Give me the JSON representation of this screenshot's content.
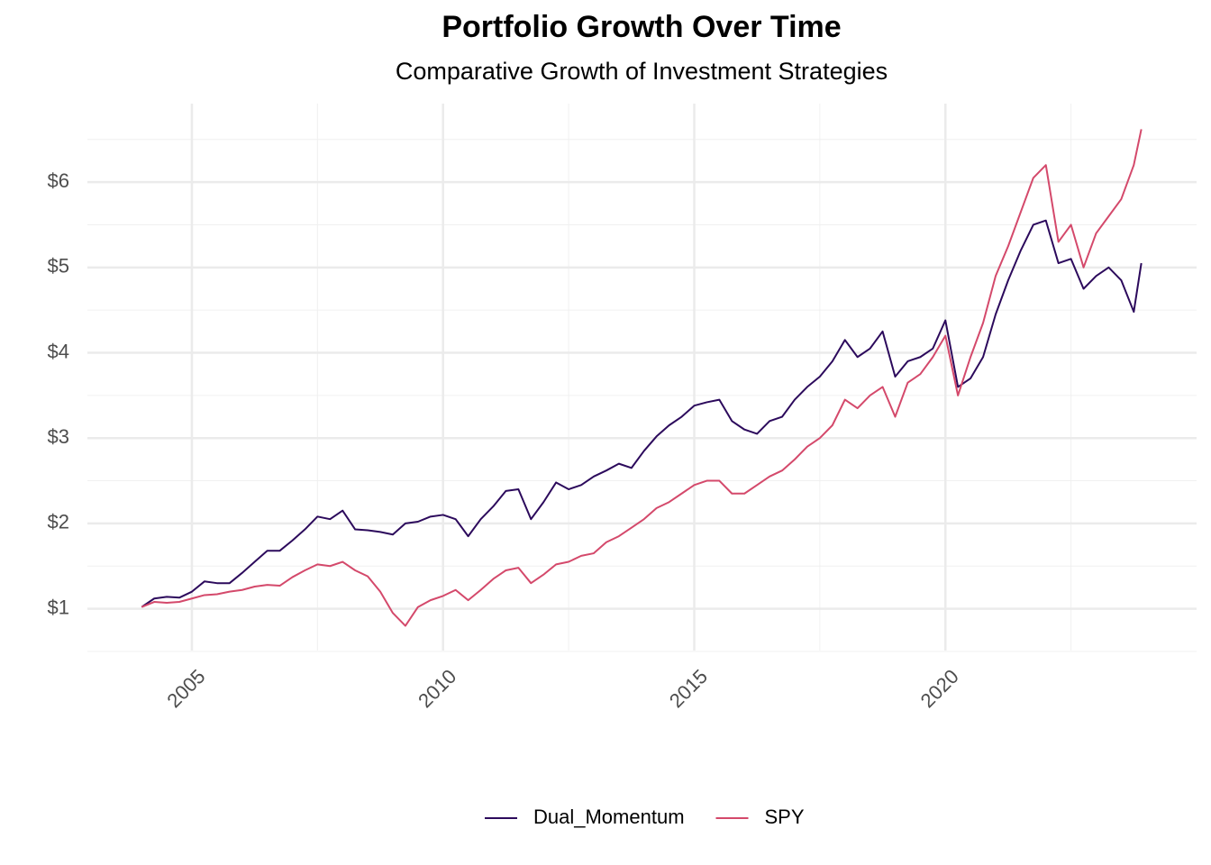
{
  "chart_data": {
    "type": "line",
    "title": "Portfolio Growth Over Time",
    "subtitle": "Comparative Growth of Investment Strategies",
    "x": [
      2004.0,
      2004.25,
      2004.5,
      2004.75,
      2005.0,
      2005.25,
      2005.5,
      2005.75,
      2006.0,
      2006.25,
      2006.5,
      2006.75,
      2007.0,
      2007.25,
      2007.5,
      2007.75,
      2008.0,
      2008.25,
      2008.5,
      2008.75,
      2009.0,
      2009.25,
      2009.5,
      2009.75,
      2010.0,
      2010.25,
      2010.5,
      2010.75,
      2011.0,
      2011.25,
      2011.5,
      2011.75,
      2012.0,
      2012.25,
      2012.5,
      2012.75,
      2013.0,
      2013.25,
      2013.5,
      2013.75,
      2014.0,
      2014.25,
      2014.5,
      2014.75,
      2015.0,
      2015.25,
      2015.5,
      2015.75,
      2016.0,
      2016.25,
      2016.5,
      2016.75,
      2017.0,
      2017.25,
      2017.5,
      2017.75,
      2018.0,
      2018.25,
      2018.5,
      2018.75,
      2019.0,
      2019.25,
      2019.5,
      2019.75,
      2020.0,
      2020.25,
      2020.5,
      2020.75,
      2021.0,
      2021.25,
      2021.5,
      2021.75,
      2022.0,
      2022.25,
      2022.5,
      2022.75,
      2023.0,
      2023.25,
      2023.5,
      2023.75,
      2023.9
    ],
    "series": [
      {
        "name": "Dual_Momentum",
        "color": "#2c0a5c",
        "values": [
          1.02,
          1.12,
          1.14,
          1.13,
          1.2,
          1.32,
          1.3,
          1.3,
          1.42,
          1.55,
          1.68,
          1.68,
          1.8,
          1.93,
          2.08,
          2.05,
          2.15,
          1.93,
          1.92,
          1.9,
          1.87,
          2.0,
          2.02,
          2.08,
          2.1,
          2.05,
          1.85,
          2.05,
          2.2,
          2.38,
          2.4,
          2.05,
          2.25,
          2.48,
          2.4,
          2.45,
          2.55,
          2.62,
          2.7,
          2.65,
          2.85,
          3.02,
          3.15,
          3.25,
          3.38,
          3.42,
          3.45,
          3.2,
          3.1,
          3.05,
          3.2,
          3.25,
          3.45,
          3.6,
          3.72,
          3.9,
          4.15,
          3.95,
          4.05,
          4.25,
          3.72,
          3.9,
          3.95,
          4.05,
          4.38,
          3.6,
          3.7,
          3.95,
          4.45,
          4.85,
          5.2,
          5.5,
          5.55,
          5.05,
          5.1,
          4.75,
          4.9,
          5.0,
          4.85,
          4.48,
          5.05
        ]
      },
      {
        "name": "SPY",
        "color": "#d4496b",
        "values": [
          1.02,
          1.08,
          1.07,
          1.08,
          1.12,
          1.16,
          1.17,
          1.2,
          1.22,
          1.26,
          1.28,
          1.27,
          1.37,
          1.45,
          1.52,
          1.5,
          1.55,
          1.45,
          1.38,
          1.2,
          0.95,
          0.8,
          1.02,
          1.1,
          1.15,
          1.22,
          1.1,
          1.22,
          1.35,
          1.45,
          1.48,
          1.3,
          1.4,
          1.52,
          1.55,
          1.62,
          1.65,
          1.78,
          1.85,
          1.95,
          2.05,
          2.18,
          2.25,
          2.35,
          2.45,
          2.5,
          2.5,
          2.35,
          2.35,
          2.45,
          2.55,
          2.62,
          2.75,
          2.9,
          3.0,
          3.15,
          3.45,
          3.35,
          3.5,
          3.6,
          3.25,
          3.65,
          3.75,
          3.95,
          4.2,
          3.5,
          3.95,
          4.35,
          4.9,
          5.25,
          5.65,
          6.05,
          6.2,
          5.3,
          5.5,
          5.0,
          5.4,
          5.6,
          5.8,
          6.2,
          6.62
        ]
      }
    ],
    "xlim": [
      2002.92,
      2025.0
    ],
    "xticks": [
      2005,
      2010,
      2015,
      2020
    ],
    "xminor": [
      2007.5,
      2012.5,
      2017.5,
      2022.5
    ],
    "ylim": [
      0.51,
      6.92
    ],
    "yticks": [
      {
        "value": 1,
        "label": "$1"
      },
      {
        "value": 2,
        "label": "$2"
      },
      {
        "value": 3,
        "label": "$3"
      },
      {
        "value": 4,
        "label": "$4"
      },
      {
        "value": 5,
        "label": "$5"
      },
      {
        "value": 6,
        "label": "$6"
      }
    ],
    "yminor": [
      0.5,
      1.5,
      2.5,
      3.5,
      4.5,
      5.5,
      6.5
    ],
    "grid": true,
    "legend": "bottom"
  }
}
